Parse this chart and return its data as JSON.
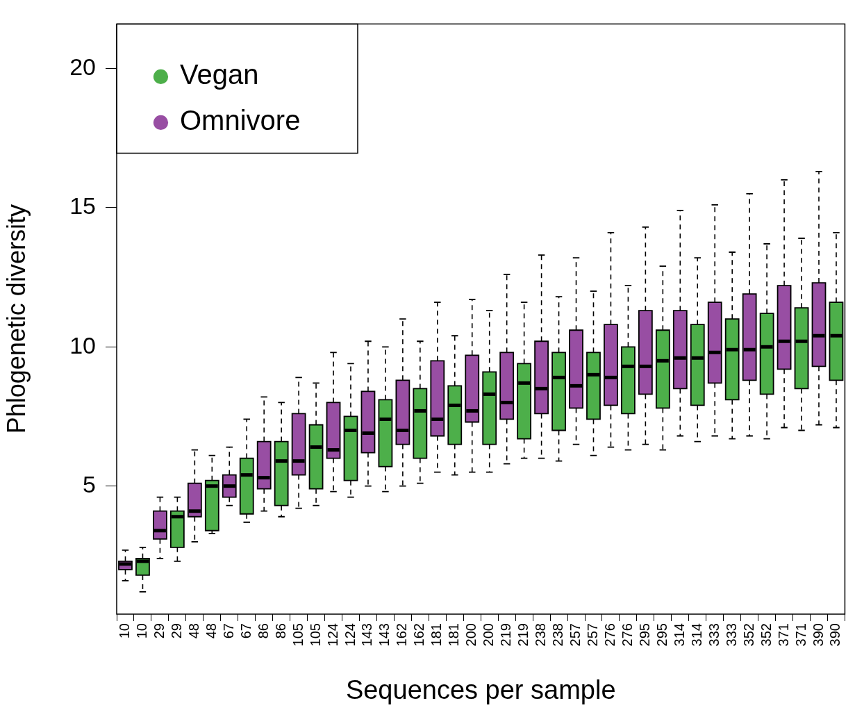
{
  "chart_data": {
    "type": "box",
    "xlabel": "Sequences per sample",
    "ylabel": "Phlogenetic diversity",
    "categories": [
      "10",
      "10",
      "29",
      "29",
      "48",
      "48",
      "67",
      "67",
      "86",
      "86",
      "105",
      "105",
      "124",
      "124",
      "143",
      "143",
      "162",
      "162",
      "181",
      "181",
      "200",
      "200",
      "219",
      "219",
      "238",
      "238",
      "257",
      "257",
      "276",
      "276",
      "295",
      "295",
      "314",
      "314",
      "333",
      "333",
      "352",
      "352",
      "371",
      "371",
      "390",
      "390"
    ],
    "ylim": [
      0.4,
      21.6
    ],
    "yticks": [
      5,
      10,
      15,
      20
    ],
    "grid": false,
    "legend": "top left",
    "line_style": "dashed",
    "series": [
      {
        "name": "Vegan",
        "color": "#4daf4a",
        "boxes": [
          null,
          {
            "low": 1.2,
            "q1": 1.8,
            "median": 2.3,
            "q3": 2.4,
            "high": 2.8
          },
          null,
          {
            "low": 2.3,
            "q1": 2.8,
            "median": 3.9,
            "q3": 4.1,
            "high": 4.6
          },
          null,
          {
            "low": 3.3,
            "q1": 3.4,
            "median": 5.0,
            "q3": 5.2,
            "high": 6.1
          },
          null,
          {
            "low": 3.7,
            "q1": 4.0,
            "median": 5.4,
            "q3": 6.0,
            "high": 7.4
          },
          null,
          {
            "low": 3.9,
            "q1": 4.3,
            "median": 5.9,
            "q3": 6.6,
            "high": 8.0
          },
          null,
          {
            "low": 4.3,
            "q1": 4.9,
            "median": 6.4,
            "q3": 7.2,
            "high": 8.7
          },
          null,
          {
            "low": 4.6,
            "q1": 5.2,
            "median": 7.0,
            "q3": 7.5,
            "high": 9.4
          },
          null,
          {
            "low": 4.8,
            "q1": 5.7,
            "median": 7.4,
            "q3": 8.1,
            "high": 10.0
          },
          null,
          {
            "low": 5.1,
            "q1": 6.0,
            "median": 7.7,
            "q3": 8.5,
            "high": 10.2
          },
          null,
          {
            "low": 5.4,
            "q1": 6.5,
            "median": 7.9,
            "q3": 8.6,
            "high": 10.4
          },
          null,
          {
            "low": 5.5,
            "q1": 6.5,
            "median": 8.3,
            "q3": 9.1,
            "high": 11.3
          },
          null,
          {
            "low": 6.0,
            "q1": 6.7,
            "median": 8.7,
            "q3": 9.4,
            "high": 11.6
          },
          null,
          {
            "low": 5.9,
            "q1": 7.0,
            "median": 8.9,
            "q3": 9.8,
            "high": 11.8
          },
          null,
          {
            "low": 6.1,
            "q1": 7.4,
            "median": 9.0,
            "q3": 9.8,
            "high": 12.0
          },
          null,
          {
            "low": 6.3,
            "q1": 7.6,
            "median": 9.3,
            "q3": 10.0,
            "high": 12.2
          },
          null,
          {
            "low": 6.3,
            "q1": 7.8,
            "median": 9.5,
            "q3": 10.6,
            "high": 12.9
          },
          null,
          {
            "low": 6.6,
            "q1": 7.9,
            "median": 9.6,
            "q3": 10.8,
            "high": 13.2
          },
          null,
          {
            "low": 6.7,
            "q1": 8.1,
            "median": 9.9,
            "q3": 11.0,
            "high": 13.4
          },
          null,
          {
            "low": 6.7,
            "q1": 8.3,
            "median": 10.0,
            "q3": 11.2,
            "high": 13.7
          },
          null,
          {
            "low": 7.0,
            "q1": 8.5,
            "median": 10.2,
            "q3": 11.4,
            "high": 13.9
          },
          null,
          {
            "low": 7.1,
            "q1": 8.8,
            "median": 10.4,
            "q3": 11.6,
            "high": 14.1
          }
        ]
      },
      {
        "name": "Omnivore",
        "color": "#984ea3",
        "boxes": [
          {
            "low": 1.6,
            "q1": 2.0,
            "median": 2.2,
            "q3": 2.3,
            "high": 2.7
          },
          null,
          {
            "low": 2.4,
            "q1": 3.1,
            "median": 3.4,
            "q3": 4.1,
            "high": 4.6
          },
          null,
          {
            "low": 3.0,
            "q1": 3.9,
            "median": 4.1,
            "q3": 5.1,
            "high": 6.3
          },
          null,
          {
            "low": 4.3,
            "q1": 4.6,
            "median": 5.0,
            "q3": 5.4,
            "high": 6.4
          },
          null,
          {
            "low": 4.1,
            "q1": 4.9,
            "median": 5.3,
            "q3": 6.6,
            "high": 8.2
          },
          null,
          {
            "low": 4.2,
            "q1": 5.4,
            "median": 5.9,
            "q3": 7.6,
            "high": 8.9
          },
          null,
          {
            "low": 4.8,
            "q1": 6.0,
            "median": 6.3,
            "q3": 8.0,
            "high": 9.8
          },
          null,
          {
            "low": 5.0,
            "q1": 6.2,
            "median": 6.9,
            "q3": 8.4,
            "high": 10.2
          },
          null,
          {
            "low": 5.0,
            "q1": 6.5,
            "median": 7.0,
            "q3": 8.8,
            "high": 11.0
          },
          null,
          {
            "low": 5.5,
            "q1": 6.8,
            "median": 7.4,
            "q3": 9.5,
            "high": 11.6
          },
          null,
          {
            "low": 5.5,
            "q1": 7.3,
            "median": 7.7,
            "q3": 9.7,
            "high": 11.7
          },
          null,
          {
            "low": 5.8,
            "q1": 7.4,
            "median": 8.0,
            "q3": 9.8,
            "high": 12.6
          },
          null,
          {
            "low": 6.0,
            "q1": 7.6,
            "median": 8.5,
            "q3": 10.2,
            "high": 13.3
          },
          null,
          {
            "low": 6.5,
            "q1": 7.8,
            "median": 8.6,
            "q3": 10.6,
            "high": 13.2
          },
          null,
          {
            "low": 6.4,
            "q1": 7.9,
            "median": 8.9,
            "q3": 10.8,
            "high": 14.1
          },
          null,
          {
            "low": 6.5,
            "q1": 8.3,
            "median": 9.3,
            "q3": 11.3,
            "high": 14.3
          },
          null,
          {
            "low": 6.8,
            "q1": 8.5,
            "median": 9.6,
            "q3": 11.3,
            "high": 14.9
          },
          null,
          {
            "low": 6.8,
            "q1": 8.7,
            "median": 9.8,
            "q3": 11.6,
            "high": 15.1
          },
          null,
          {
            "low": 6.8,
            "q1": 8.8,
            "median": 9.9,
            "q3": 11.9,
            "high": 15.5
          },
          null,
          {
            "low": 7.1,
            "q1": 9.2,
            "median": 10.2,
            "q3": 12.2,
            "high": 16.0
          },
          null,
          {
            "low": 7.2,
            "q1": 9.3,
            "median": 10.4,
            "q3": 12.3,
            "high": 16.3
          },
          null
        ]
      }
    ]
  }
}
